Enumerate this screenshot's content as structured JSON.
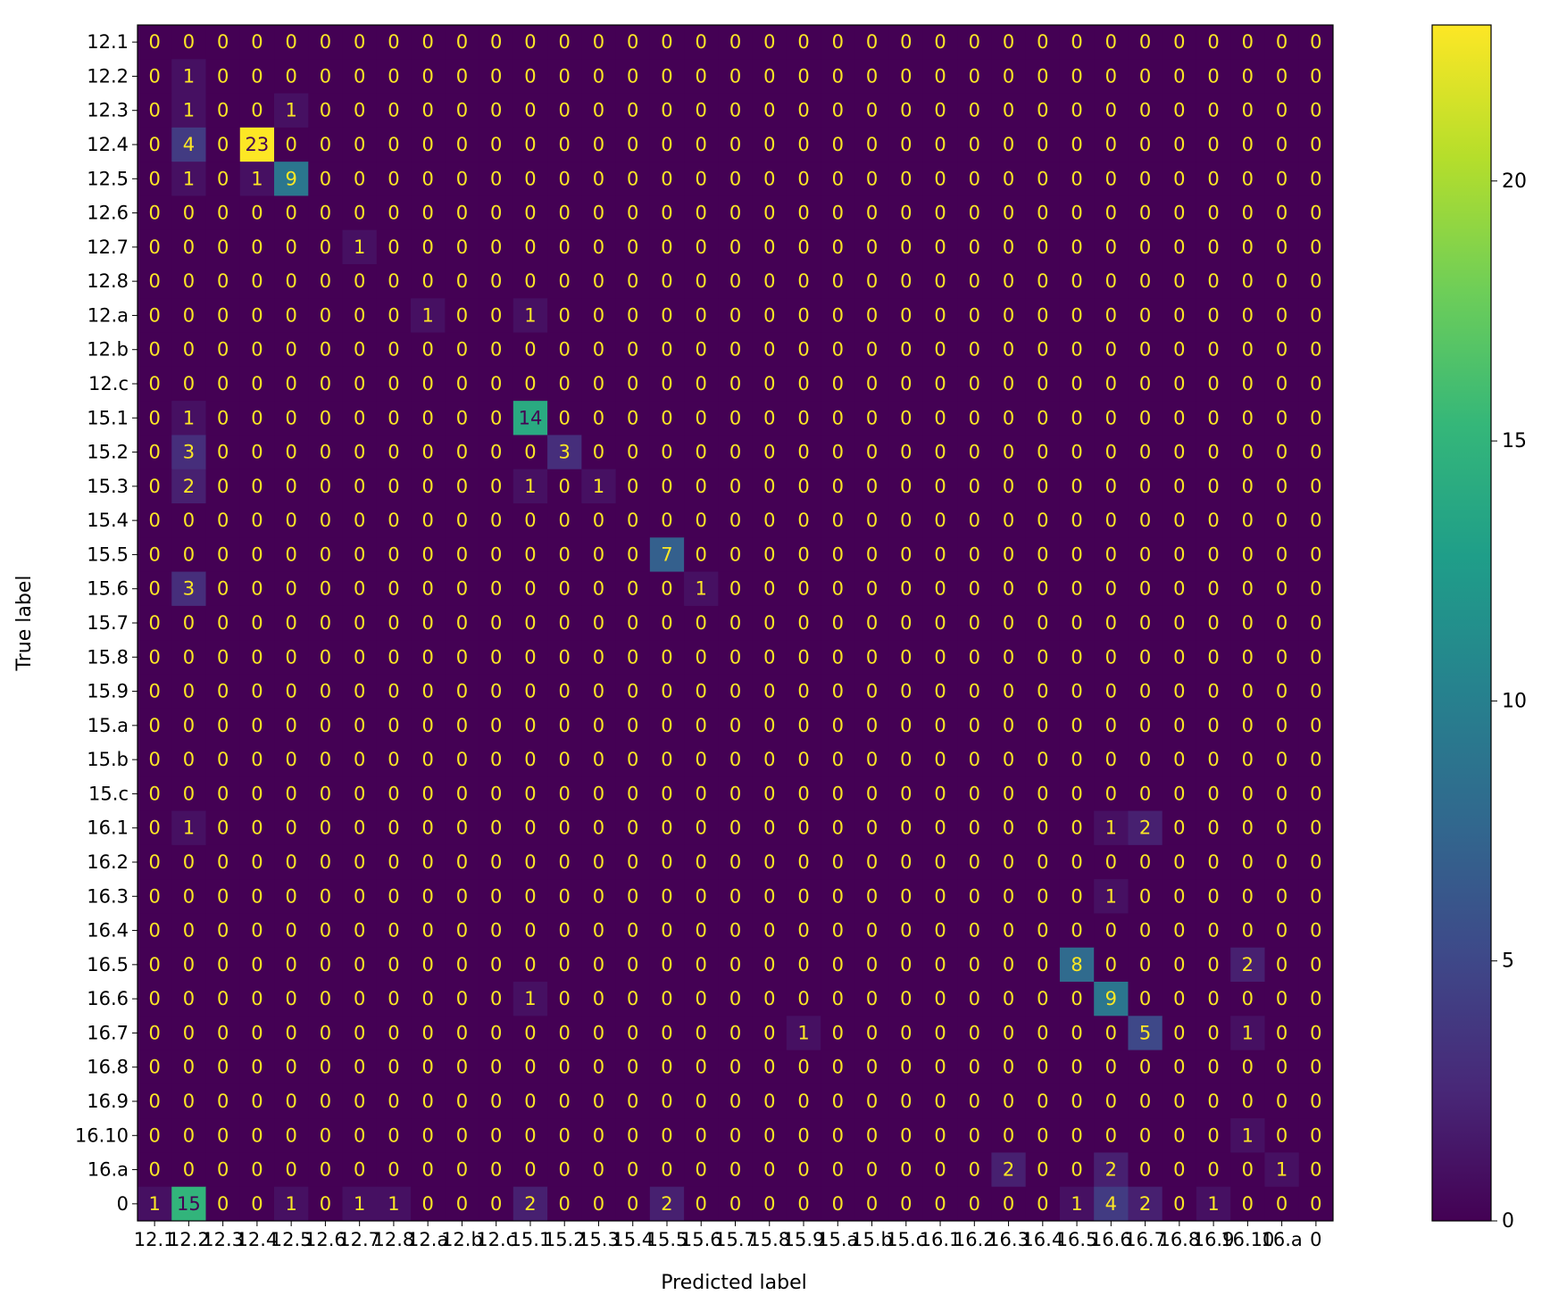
{
  "chart_data": {
    "type": "heatmap",
    "x_label": "Predicted label",
    "y_label": "True label",
    "categories": [
      "12.1",
      "12.2",
      "12.3",
      "12.4",
      "12.5",
      "12.6",
      "12.7",
      "12.8",
      "12.a",
      "12.b",
      "12.c",
      "15.1",
      "15.2",
      "15.3",
      "15.4",
      "15.5",
      "15.6",
      "15.7",
      "15.8",
      "15.9",
      "15.a",
      "15.b",
      "15.c",
      "16.1",
      "16.2",
      "16.3",
      "16.4",
      "16.5",
      "16.6",
      "16.7",
      "16.8",
      "16.9",
      "16.10",
      "16.a",
      "0"
    ],
    "values": [
      [
        0,
        0,
        0,
        0,
        0,
        0,
        0,
        0,
        0,
        0,
        0,
        0,
        0,
        0,
        0,
        0,
        0,
        0,
        0,
        0,
        0,
        0,
        0,
        0,
        0,
        0,
        0,
        0,
        0,
        0,
        0,
        0,
        0,
        0,
        0
      ],
      [
        0,
        1,
        0,
        0,
        0,
        0,
        0,
        0,
        0,
        0,
        0,
        0,
        0,
        0,
        0,
        0,
        0,
        0,
        0,
        0,
        0,
        0,
        0,
        0,
        0,
        0,
        0,
        0,
        0,
        0,
        0,
        0,
        0,
        0,
        0
      ],
      [
        0,
        1,
        0,
        0,
        1,
        0,
        0,
        0,
        0,
        0,
        0,
        0,
        0,
        0,
        0,
        0,
        0,
        0,
        0,
        0,
        0,
        0,
        0,
        0,
        0,
        0,
        0,
        0,
        0,
        0,
        0,
        0,
        0,
        0,
        0
      ],
      [
        0,
        4,
        0,
        23,
        0,
        0,
        0,
        0,
        0,
        0,
        0,
        0,
        0,
        0,
        0,
        0,
        0,
        0,
        0,
        0,
        0,
        0,
        0,
        0,
        0,
        0,
        0,
        0,
        0,
        0,
        0,
        0,
        0,
        0,
        0
      ],
      [
        0,
        1,
        0,
        1,
        9,
        0,
        0,
        0,
        0,
        0,
        0,
        0,
        0,
        0,
        0,
        0,
        0,
        0,
        0,
        0,
        0,
        0,
        0,
        0,
        0,
        0,
        0,
        0,
        0,
        0,
        0,
        0,
        0,
        0,
        0
      ],
      [
        0,
        0,
        0,
        0,
        0,
        0,
        0,
        0,
        0,
        0,
        0,
        0,
        0,
        0,
        0,
        0,
        0,
        0,
        0,
        0,
        0,
        0,
        0,
        0,
        0,
        0,
        0,
        0,
        0,
        0,
        0,
        0,
        0,
        0,
        0
      ],
      [
        0,
        0,
        0,
        0,
        0,
        0,
        1,
        0,
        0,
        0,
        0,
        0,
        0,
        0,
        0,
        0,
        0,
        0,
        0,
        0,
        0,
        0,
        0,
        0,
        0,
        0,
        0,
        0,
        0,
        0,
        0,
        0,
        0,
        0,
        0
      ],
      [
        0,
        0,
        0,
        0,
        0,
        0,
        0,
        0,
        0,
        0,
        0,
        0,
        0,
        0,
        0,
        0,
        0,
        0,
        0,
        0,
        0,
        0,
        0,
        0,
        0,
        0,
        0,
        0,
        0,
        0,
        0,
        0,
        0,
        0,
        0
      ],
      [
        0,
        0,
        0,
        0,
        0,
        0,
        0,
        0,
        1,
        0,
        0,
        1,
        0,
        0,
        0,
        0,
        0,
        0,
        0,
        0,
        0,
        0,
        0,
        0,
        0,
        0,
        0,
        0,
        0,
        0,
        0,
        0,
        0,
        0,
        0
      ],
      [
        0,
        0,
        0,
        0,
        0,
        0,
        0,
        0,
        0,
        0,
        0,
        0,
        0,
        0,
        0,
        0,
        0,
        0,
        0,
        0,
        0,
        0,
        0,
        0,
        0,
        0,
        0,
        0,
        0,
        0,
        0,
        0,
        0,
        0,
        0
      ],
      [
        0,
        0,
        0,
        0,
        0,
        0,
        0,
        0,
        0,
        0,
        0,
        0,
        0,
        0,
        0,
        0,
        0,
        0,
        0,
        0,
        0,
        0,
        0,
        0,
        0,
        0,
        0,
        0,
        0,
        0,
        0,
        0,
        0,
        0,
        0
      ],
      [
        0,
        1,
        0,
        0,
        0,
        0,
        0,
        0,
        0,
        0,
        0,
        14,
        0,
        0,
        0,
        0,
        0,
        0,
        0,
        0,
        0,
        0,
        0,
        0,
        0,
        0,
        0,
        0,
        0,
        0,
        0,
        0,
        0,
        0,
        0
      ],
      [
        0,
        3,
        0,
        0,
        0,
        0,
        0,
        0,
        0,
        0,
        0,
        0,
        3,
        0,
        0,
        0,
        0,
        0,
        0,
        0,
        0,
        0,
        0,
        0,
        0,
        0,
        0,
        0,
        0,
        0,
        0,
        0,
        0,
        0,
        0
      ],
      [
        0,
        2,
        0,
        0,
        0,
        0,
        0,
        0,
        0,
        0,
        0,
        1,
        0,
        1,
        0,
        0,
        0,
        0,
        0,
        0,
        0,
        0,
        0,
        0,
        0,
        0,
        0,
        0,
        0,
        0,
        0,
        0,
        0,
        0,
        0
      ],
      [
        0,
        0,
        0,
        0,
        0,
        0,
        0,
        0,
        0,
        0,
        0,
        0,
        0,
        0,
        0,
        0,
        0,
        0,
        0,
        0,
        0,
        0,
        0,
        0,
        0,
        0,
        0,
        0,
        0,
        0,
        0,
        0,
        0,
        0,
        0
      ],
      [
        0,
        0,
        0,
        0,
        0,
        0,
        0,
        0,
        0,
        0,
        0,
        0,
        0,
        0,
        0,
        7,
        0,
        0,
        0,
        0,
        0,
        0,
        0,
        0,
        0,
        0,
        0,
        0,
        0,
        0,
        0,
        0,
        0,
        0,
        0
      ],
      [
        0,
        3,
        0,
        0,
        0,
        0,
        0,
        0,
        0,
        0,
        0,
        0,
        0,
        0,
        0,
        0,
        1,
        0,
        0,
        0,
        0,
        0,
        0,
        0,
        0,
        0,
        0,
        0,
        0,
        0,
        0,
        0,
        0,
        0,
        0
      ],
      [
        0,
        0,
        0,
        0,
        0,
        0,
        0,
        0,
        0,
        0,
        0,
        0,
        0,
        0,
        0,
        0,
        0,
        0,
        0,
        0,
        0,
        0,
        0,
        0,
        0,
        0,
        0,
        0,
        0,
        0,
        0,
        0,
        0,
        0,
        0
      ],
      [
        0,
        0,
        0,
        0,
        0,
        0,
        0,
        0,
        0,
        0,
        0,
        0,
        0,
        0,
        0,
        0,
        0,
        0,
        0,
        0,
        0,
        0,
        0,
        0,
        0,
        0,
        0,
        0,
        0,
        0,
        0,
        0,
        0,
        0,
        0
      ],
      [
        0,
        0,
        0,
        0,
        0,
        0,
        0,
        0,
        0,
        0,
        0,
        0,
        0,
        0,
        0,
        0,
        0,
        0,
        0,
        0,
        0,
        0,
        0,
        0,
        0,
        0,
        0,
        0,
        0,
        0,
        0,
        0,
        0,
        0,
        0
      ],
      [
        0,
        0,
        0,
        0,
        0,
        0,
        0,
        0,
        0,
        0,
        0,
        0,
        0,
        0,
        0,
        0,
        0,
        0,
        0,
        0,
        0,
        0,
        0,
        0,
        0,
        0,
        0,
        0,
        0,
        0,
        0,
        0,
        0,
        0,
        0
      ],
      [
        0,
        0,
        0,
        0,
        0,
        0,
        0,
        0,
        0,
        0,
        0,
        0,
        0,
        0,
        0,
        0,
        0,
        0,
        0,
        0,
        0,
        0,
        0,
        0,
        0,
        0,
        0,
        0,
        0,
        0,
        0,
        0,
        0,
        0,
        0
      ],
      [
        0,
        0,
        0,
        0,
        0,
        0,
        0,
        0,
        0,
        0,
        0,
        0,
        0,
        0,
        0,
        0,
        0,
        0,
        0,
        0,
        0,
        0,
        0,
        0,
        0,
        0,
        0,
        0,
        0,
        0,
        0,
        0,
        0,
        0,
        0
      ],
      [
        0,
        1,
        0,
        0,
        0,
        0,
        0,
        0,
        0,
        0,
        0,
        0,
        0,
        0,
        0,
        0,
        0,
        0,
        0,
        0,
        0,
        0,
        0,
        0,
        0,
        0,
        0,
        0,
        1,
        2,
        0,
        0,
        0,
        0,
        0
      ],
      [
        0,
        0,
        0,
        0,
        0,
        0,
        0,
        0,
        0,
        0,
        0,
        0,
        0,
        0,
        0,
        0,
        0,
        0,
        0,
        0,
        0,
        0,
        0,
        0,
        0,
        0,
        0,
        0,
        0,
        0,
        0,
        0,
        0,
        0,
        0
      ],
      [
        0,
        0,
        0,
        0,
        0,
        0,
        0,
        0,
        0,
        0,
        0,
        0,
        0,
        0,
        0,
        0,
        0,
        0,
        0,
        0,
        0,
        0,
        0,
        0,
        0,
        0,
        0,
        0,
        1,
        0,
        0,
        0,
        0,
        0,
        0
      ],
      [
        0,
        0,
        0,
        0,
        0,
        0,
        0,
        0,
        0,
        0,
        0,
        0,
        0,
        0,
        0,
        0,
        0,
        0,
        0,
        0,
        0,
        0,
        0,
        0,
        0,
        0,
        0,
        0,
        0,
        0,
        0,
        0,
        0,
        0,
        0
      ],
      [
        0,
        0,
        0,
        0,
        0,
        0,
        0,
        0,
        0,
        0,
        0,
        0,
        0,
        0,
        0,
        0,
        0,
        0,
        0,
        0,
        0,
        0,
        0,
        0,
        0,
        0,
        0,
        8,
        0,
        0,
        0,
        0,
        2,
        0,
        0
      ],
      [
        0,
        0,
        0,
        0,
        0,
        0,
        0,
        0,
        0,
        0,
        0,
        1,
        0,
        0,
        0,
        0,
        0,
        0,
        0,
        0,
        0,
        0,
        0,
        0,
        0,
        0,
        0,
        0,
        9,
        0,
        0,
        0,
        0,
        0,
        0
      ],
      [
        0,
        0,
        0,
        0,
        0,
        0,
        0,
        0,
        0,
        0,
        0,
        0,
        0,
        0,
        0,
        0,
        0,
        0,
        0,
        1,
        0,
        0,
        0,
        0,
        0,
        0,
        0,
        0,
        0,
        5,
        0,
        0,
        1,
        0,
        0
      ],
      [
        0,
        0,
        0,
        0,
        0,
        0,
        0,
        0,
        0,
        0,
        0,
        0,
        0,
        0,
        0,
        0,
        0,
        0,
        0,
        0,
        0,
        0,
        0,
        0,
        0,
        0,
        0,
        0,
        0,
        0,
        0,
        0,
        0,
        0,
        0
      ],
      [
        0,
        0,
        0,
        0,
        0,
        0,
        0,
        0,
        0,
        0,
        0,
        0,
        0,
        0,
        0,
        0,
        0,
        0,
        0,
        0,
        0,
        0,
        0,
        0,
        0,
        0,
        0,
        0,
        0,
        0,
        0,
        0,
        0,
        0,
        0
      ],
      [
        0,
        0,
        0,
        0,
        0,
        0,
        0,
        0,
        0,
        0,
        0,
        0,
        0,
        0,
        0,
        0,
        0,
        0,
        0,
        0,
        0,
        0,
        0,
        0,
        0,
        0,
        0,
        0,
        0,
        0,
        0,
        0,
        1,
        0,
        0
      ],
      [
        0,
        0,
        0,
        0,
        0,
        0,
        0,
        0,
        0,
        0,
        0,
        0,
        0,
        0,
        0,
        0,
        0,
        0,
        0,
        0,
        0,
        0,
        0,
        0,
        0,
        2,
        0,
        0,
        2,
        0,
        0,
        0,
        0,
        1,
        0
      ],
      [
        1,
        15,
        0,
        0,
        1,
        0,
        1,
        1,
        0,
        0,
        0,
        2,
        0,
        0,
        0,
        2,
        0,
        0,
        0,
        0,
        0,
        0,
        0,
        0,
        0,
        0,
        0,
        1,
        4,
        2,
        0,
        1,
        0,
        0,
        0
      ]
    ],
    "colormap": "viridis",
    "clim": [
      0,
      23
    ],
    "cticks": [
      0,
      5,
      10,
      15,
      20
    ]
  }
}
